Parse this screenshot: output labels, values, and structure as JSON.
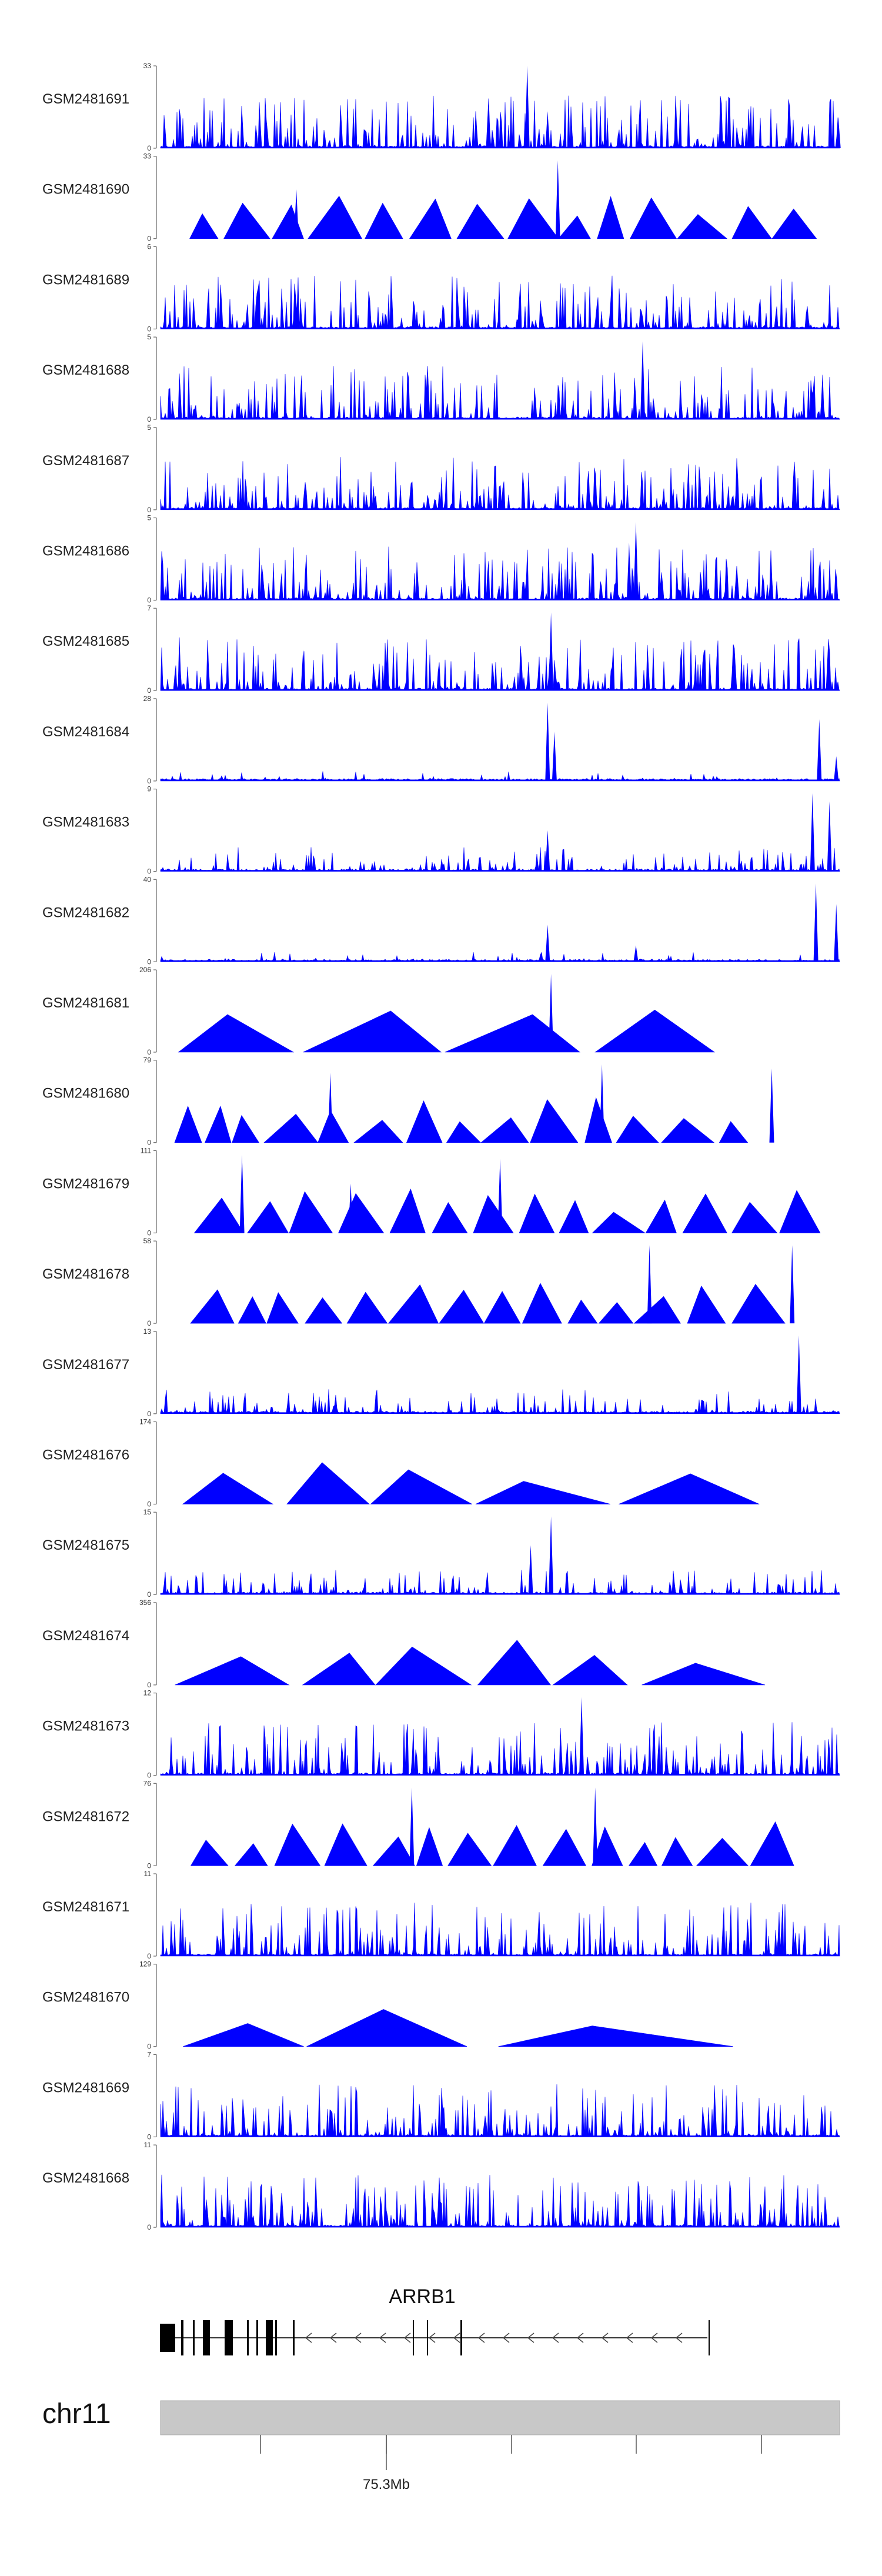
{
  "chart_data": {
    "type": "area",
    "title": "",
    "track_color": "#0000ff",
    "ideogram_color": "#c8c8c8",
    "tracks": [
      {
        "id": "GSM2481691",
        "ymax": "33",
        "ymin": "0",
        "style": "dense",
        "seed": 11,
        "peaks": [
          {
            "pos": 0.54,
            "h": 1.0
          },
          {
            "pos": 0.57,
            "h": 0.45
          },
          {
            "pos": 0.998,
            "h": 0.38
          }
        ]
      },
      {
        "id": "GSM2481690",
        "ymax": "33",
        "ymin": "0",
        "style": "tri",
        "seed": 12,
        "peaks": [
          {
            "pos": 0.585,
            "h": 0.95
          },
          {
            "pos": 0.2,
            "h": 0.6
          }
        ]
      },
      {
        "id": "GSM2481689",
        "ymax": "6",
        "ymin": "0",
        "style": "dense",
        "seed": 13,
        "peaks": []
      },
      {
        "id": "GSM2481688",
        "ymax": "5",
        "ymin": "0",
        "style": "dense",
        "seed": 14,
        "peaks": [
          {
            "pos": 0.71,
            "h": 0.95
          }
        ]
      },
      {
        "id": "GSM2481687",
        "ymax": "5",
        "ymin": "0",
        "style": "dense",
        "seed": 15,
        "peaks": []
      },
      {
        "id": "GSM2481686",
        "ymax": "5",
        "ymin": "0",
        "style": "dense",
        "seed": 16,
        "peaks": [
          {
            "pos": 0.7,
            "h": 0.95
          },
          {
            "pos": 0.69,
            "h": 0.7
          }
        ]
      },
      {
        "id": "GSM2481685",
        "ymax": "7",
        "ymin": "0",
        "style": "dense",
        "seed": 17,
        "peaks": [
          {
            "pos": 0.575,
            "h": 0.95
          },
          {
            "pos": 0.21,
            "h": 0.5
          }
        ]
      },
      {
        "id": "GSM2481684",
        "ymax": "28",
        "ymin": "0",
        "style": "sparse",
        "seed": 18,
        "peaks": [
          {
            "pos": 0.57,
            "h": 0.95
          },
          {
            "pos": 0.58,
            "h": 0.6
          },
          {
            "pos": 0.97,
            "h": 0.75
          },
          {
            "pos": 0.995,
            "h": 0.3
          }
        ]
      },
      {
        "id": "GSM2481683",
        "ymax": "9",
        "ymin": "0",
        "style": "sparse-dense",
        "seed": 19,
        "peaks": [
          {
            "pos": 0.96,
            "h": 0.95
          },
          {
            "pos": 0.985,
            "h": 0.85
          },
          {
            "pos": 0.57,
            "h": 0.5
          }
        ]
      },
      {
        "id": "GSM2481682",
        "ymax": "40",
        "ymin": "0",
        "style": "sparse",
        "seed": 20,
        "peaks": [
          {
            "pos": 0.57,
            "h": 0.45
          },
          {
            "pos": 0.965,
            "h": 0.95
          },
          {
            "pos": 0.995,
            "h": 0.7
          },
          {
            "pos": 0.7,
            "h": 0.2
          }
        ]
      },
      {
        "id": "GSM2481681",
        "ymax": "206",
        "ymin": "0",
        "style": "tri",
        "seed": 21,
        "peaks": [
          {
            "pos": 0.575,
            "h": 0.95
          }
        ],
        "tri_count": 4
      },
      {
        "id": "GSM2481680",
        "ymax": "79",
        "ymin": "0",
        "style": "tri",
        "seed": 22,
        "peaks": [
          {
            "pos": 0.25,
            "h": 0.85
          },
          {
            "pos": 0.65,
            "h": 0.95
          },
          {
            "pos": 0.9,
            "h": 0.9
          }
        ]
      },
      {
        "id": "GSM2481679",
        "ymax": "111",
        "ymin": "0",
        "style": "tri",
        "seed": 23,
        "peaks": [
          {
            "pos": 0.12,
            "h": 0.95
          },
          {
            "pos": 0.28,
            "h": 0.6
          },
          {
            "pos": 0.5,
            "h": 0.9
          }
        ]
      },
      {
        "id": "GSM2481678",
        "ymax": "58",
        "ymin": "0",
        "style": "tri",
        "seed": 24,
        "peaks": [
          {
            "pos": 0.72,
            "h": 0.95
          },
          {
            "pos": 0.93,
            "h": 0.95
          }
        ]
      },
      {
        "id": "GSM2481677",
        "ymax": "13",
        "ymin": "0",
        "style": "sparse-dense",
        "seed": 25,
        "peaks": [
          {
            "pos": 0.94,
            "h": 0.95
          }
        ]
      },
      {
        "id": "GSM2481676",
        "ymax": "174",
        "ymin": "0",
        "style": "tri",
        "seed": 26,
        "peaks": [],
        "tri_count": 5
      },
      {
        "id": "GSM2481675",
        "ymax": "15",
        "ymin": "0",
        "style": "sparse-dense",
        "seed": 27,
        "peaks": [
          {
            "pos": 0.575,
            "h": 0.95
          },
          {
            "pos": 0.545,
            "h": 0.6
          }
        ]
      },
      {
        "id": "GSM2481674",
        "ymax": "356",
        "ymin": "0",
        "style": "tri",
        "seed": 28,
        "peaks": [],
        "tri_count": 6
      },
      {
        "id": "GSM2481673",
        "ymax": "12",
        "ymin": "0",
        "style": "dense",
        "seed": 29,
        "peaks": [
          {
            "pos": 0.62,
            "h": 0.95
          }
        ]
      },
      {
        "id": "GSM2481672",
        "ymax": "76",
        "ymin": "0",
        "style": "tri",
        "seed": 30,
        "peaks": [
          {
            "pos": 0.37,
            "h": 0.95
          },
          {
            "pos": 0.64,
            "h": 0.95
          }
        ]
      },
      {
        "id": "GSM2481671",
        "ymax": "11",
        "ymin": "0",
        "style": "dense",
        "seed": 31,
        "peaks": []
      },
      {
        "id": "GSM2481670",
        "ymax": "129",
        "ymin": "0",
        "style": "tri",
        "seed": 32,
        "peaks": [],
        "tri_count": 3
      },
      {
        "id": "GSM2481669",
        "ymax": "7",
        "ymin": "0",
        "style": "dense",
        "seed": 33,
        "peaks": []
      },
      {
        "id": "GSM2481668",
        "ymax": "11",
        "ymin": "0",
        "style": "dense",
        "seed": 34,
        "peaks": []
      }
    ],
    "gene": {
      "name": "ARRB1",
      "strand": "-"
    },
    "chromosome": "chr11",
    "axis_tick_label": "75.3Mb"
  }
}
